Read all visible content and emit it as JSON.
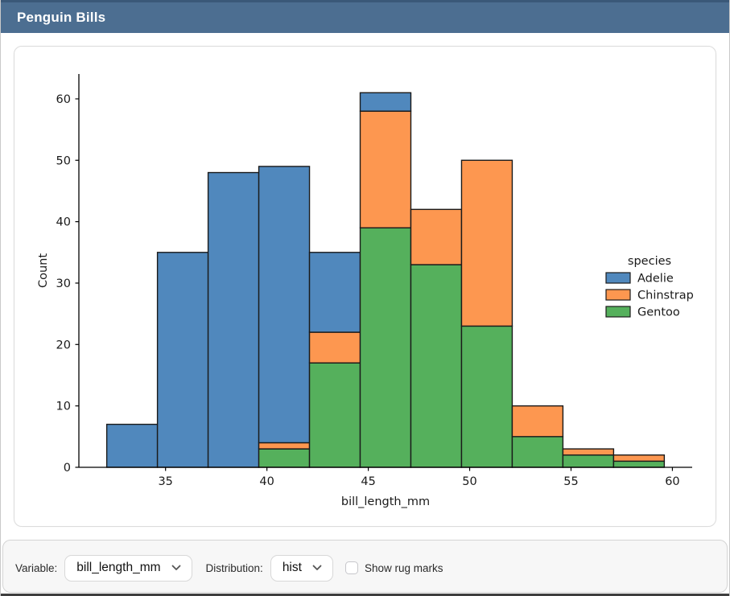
{
  "header": {
    "title": "Penguin Bills",
    "background": "#4c6e91"
  },
  "chart_data": {
    "type": "bar",
    "variant": "stacked_histogram",
    "title": "",
    "xlabel": "bill_length_mm",
    "ylabel": "Count",
    "bin_edges": [
      32.1,
      34.6,
      37.1,
      39.6,
      42.1,
      44.6,
      47.1,
      49.6,
      52.1,
      54.6,
      57.1,
      59.6
    ],
    "series": [
      {
        "name": "Adelie",
        "color": "#5088bd",
        "values": [
          7,
          35,
          48,
          45,
          13,
          3,
          0,
          0,
          0,
          0,
          0
        ]
      },
      {
        "name": "Chinstrap",
        "color": "#fd9750",
        "values": [
          0,
          0,
          0,
          1,
          5,
          19,
          9,
          27,
          5,
          1,
          1
        ]
      },
      {
        "name": "Gentoo",
        "color": "#55b05c",
        "values": [
          0,
          0,
          0,
          3,
          17,
          39,
          33,
          23,
          5,
          2,
          1
        ]
      }
    ],
    "stack_order_bottom_to_top": [
      "Gentoo",
      "Chinstrap",
      "Adelie"
    ],
    "stack_totals": [
      7,
      35,
      48,
      49,
      35,
      61,
      42,
      50,
      10,
      3,
      2
    ],
    "x_ticks": [
      35,
      40,
      45,
      50,
      55,
      60
    ],
    "y_ticks": [
      0,
      10,
      20,
      30,
      40,
      50,
      60
    ],
    "xlim": [
      30.725,
      60.975
    ],
    "ylim": [
      0,
      64.05
    ],
    "bar_edge_color": "#1a1a1a",
    "grid": false,
    "legend": {
      "title": "species",
      "position": "center-right"
    }
  },
  "controls": {
    "variable_label": "Variable:",
    "variable_value": "bill_length_mm",
    "distribution_label": "Distribution:",
    "distribution_value": "hist",
    "rug_label": "Show rug marks",
    "rug_checked": false
  }
}
